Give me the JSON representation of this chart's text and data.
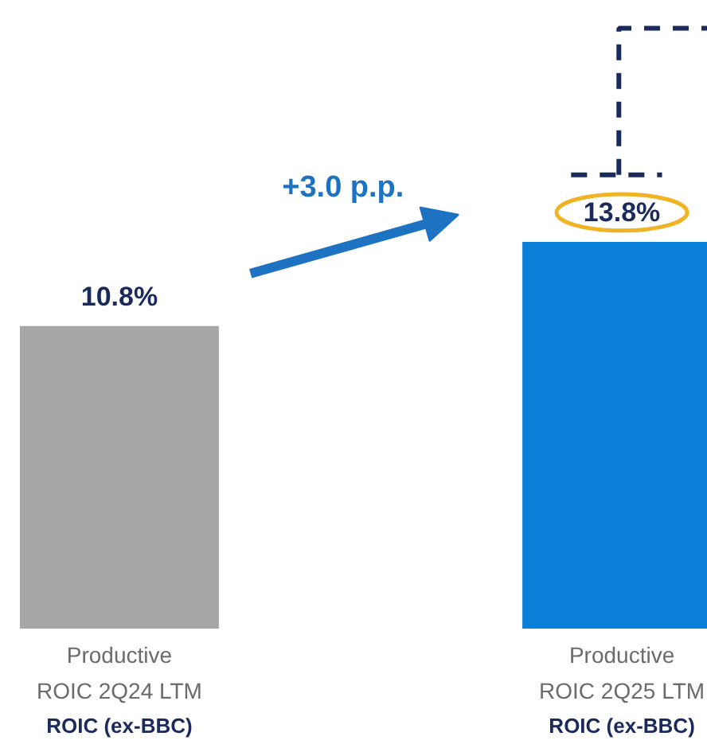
{
  "chart_data": {
    "type": "bar",
    "categories": [
      "Productive\nROIC 2Q24 LTM",
      "Productive\nROIC 2Q25 LTM"
    ],
    "values": [
      10.8,
      13.8
    ],
    "colors": [
      "#a6a6a6",
      "#0a7fd8"
    ],
    "value_labels": [
      "10.8%",
      "13.8%"
    ],
    "annotations": [
      "+3.0 p.p.",
      "ROIC (ex-BBC)",
      "ROIC (ex-BBC)"
    ]
  }
}
